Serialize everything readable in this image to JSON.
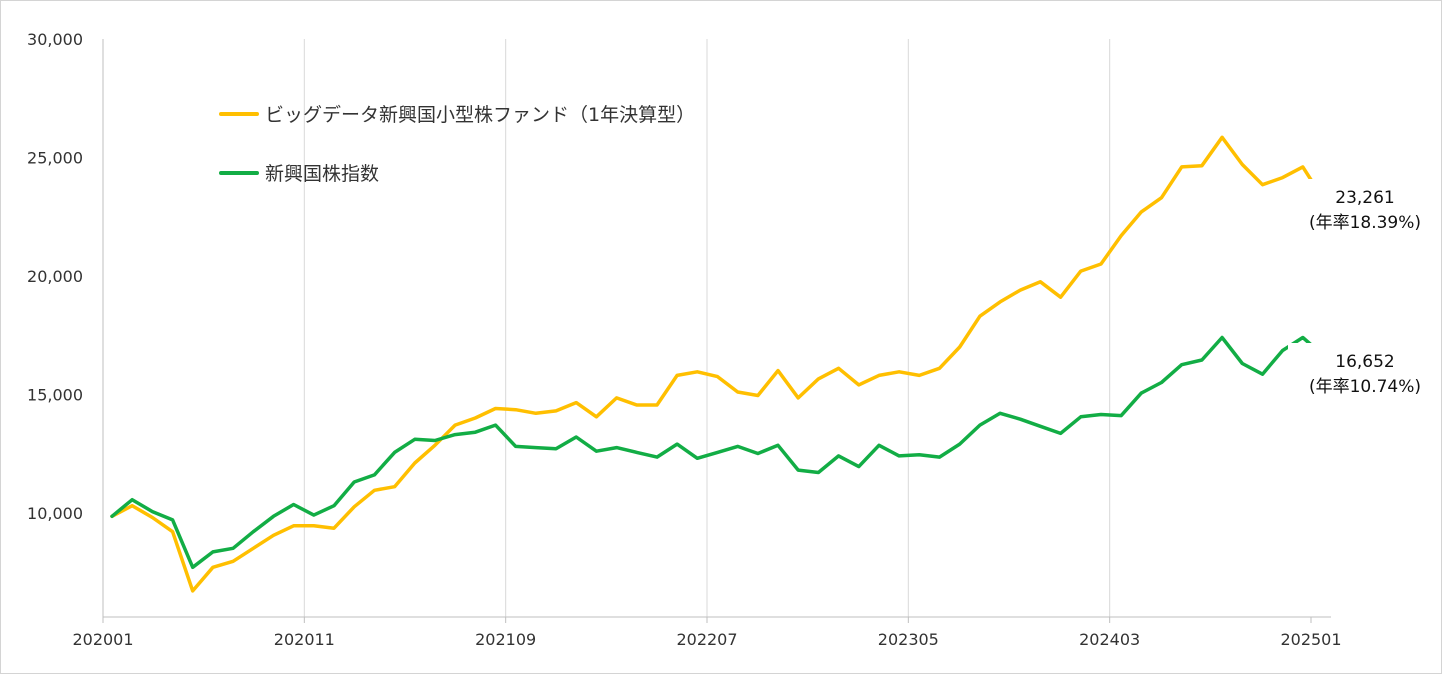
{
  "chart_data": {
    "type": "line",
    "y_ticks": [
      "30,000",
      "25,000",
      "20,000",
      "15,000",
      "10,000"
    ],
    "y_tick_values": [
      30000,
      25000,
      20000,
      15000,
      10000
    ],
    "ylim": [
      5600,
      30000
    ],
    "x_ticks": [
      "202001",
      "202011",
      "202109",
      "202207",
      "202305",
      "202403",
      "202501"
    ],
    "grid": "vertical",
    "legend_position": "top-left",
    "colors": {
      "fund": "#ffbf00",
      "index": "#12ad45",
      "grid": "#d9d9d9"
    },
    "series": [
      {
        "name": "ビッグデータ新興国小型株ファンド（1年決算型）",
        "color": "#ffbf00",
        "end_value_label": "23,261",
        "end_rate_label": "(年率18.39%)",
        "values": [
          9850,
          10300,
          9800,
          9200,
          6700,
          7700,
          7950,
          8500,
          9050,
          9450,
          9450,
          9350,
          10250,
          10950,
          11100,
          12100,
          12850,
          13700,
          14000,
          14400,
          14350,
          14200,
          14300,
          14650,
          14050,
          14850,
          14550,
          14550,
          15800,
          15950,
          15750,
          15100,
          14950,
          16000,
          14850,
          15650,
          16100,
          15400,
          15800,
          15950,
          15800,
          16100,
          17000,
          18300,
          18900,
          19400,
          19750,
          19100,
          20200,
          20500,
          21700,
          22700,
          23300,
          24600,
          24650,
          25850,
          24700,
          23850,
          24150,
          24600,
          23261
        ]
      },
      {
        "name": "新興国株指数",
        "color": "#12ad45",
        "end_value_label": "16,652",
        "end_rate_label": "(年率10.74%)",
        "values": [
          9850,
          10550,
          10050,
          9700,
          7700,
          8350,
          8500,
          9200,
          9850,
          10350,
          9900,
          10300,
          11300,
          11600,
          12550,
          13100,
          13050,
          13300,
          13400,
          13700,
          12800,
          12750,
          12700,
          13200,
          12600,
          12750,
          12550,
          12350,
          12900,
          12300,
          12550,
          12800,
          12500,
          12850,
          11800,
          11700,
          12400,
          11950,
          12850,
          12400,
          12450,
          12350,
          12900,
          13700,
          14200,
          13950,
          13650,
          13350,
          14050,
          14150,
          14100,
          15050,
          15500,
          16250,
          16450,
          17400,
          16300,
          15850,
          16850,
          17400,
          16652
        ]
      }
    ]
  }
}
